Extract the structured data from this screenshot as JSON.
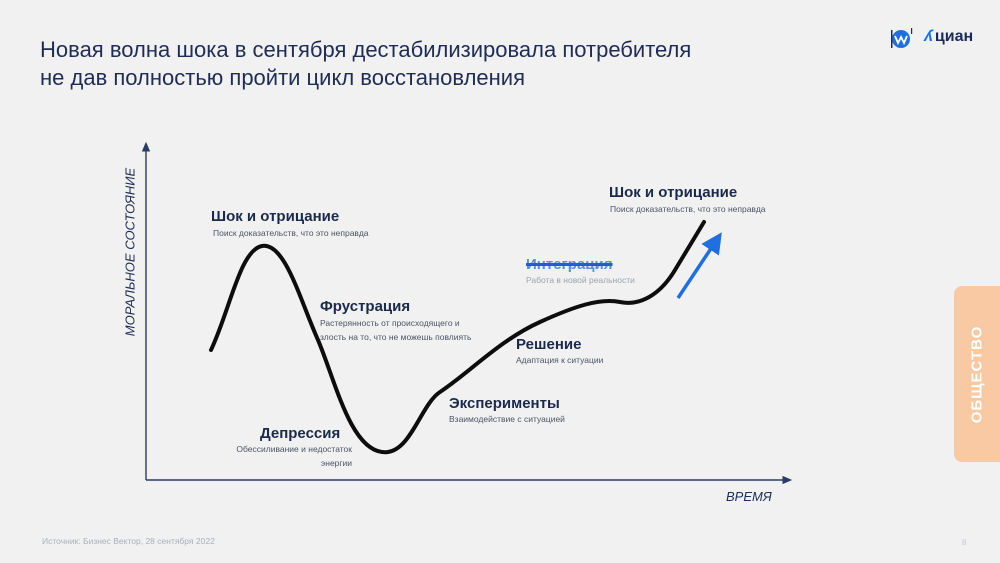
{
  "header": {
    "title_line1": "Новая волна шока в сентября дестабилизировала потребителя",
    "title_line2": "не дав полностью пройти цикл восстановления"
  },
  "logos": {
    "cian": "циан",
    "mark_icon": "eye-logo-icon"
  },
  "axes": {
    "y_label": "МОРАЛЬНОЕ СОСТОЯНИЕ",
    "x_label": "ВРЕМЯ"
  },
  "stages": [
    {
      "title": "Шок и отрицание",
      "subtitle": "Поиск доказательств, что это неправда"
    },
    {
      "title": "Фрустрация",
      "subtitle_line1": "Растерянность от происходящего и",
      "subtitle_line2": "злость на то, что не можешь повлиять"
    },
    {
      "title": "Депрессия",
      "subtitle_line1": "Обессиливание и недостаток",
      "subtitle_line2": "энергии"
    },
    {
      "title": "Эксперименты",
      "subtitle": "Взаимодействие с ситуацией"
    },
    {
      "title": "Решение",
      "subtitle": "Адаптация к ситуации"
    },
    {
      "title": "Интеграция",
      "subtitle": "Работа в новой реальности",
      "crossed_out": true
    },
    {
      "title": "Шок и отрицание",
      "subtitle": "Поиск доказательств, что это неправда"
    }
  ],
  "colors": {
    "curve": "#0d0d0d",
    "arrow": "#1f6fe0",
    "axis": "#2a3a6a",
    "side_tab": "#f8c9a2"
  },
  "side_tab": {
    "label": "ОБЩЕСТВО"
  },
  "footer": {
    "source": "Источник: Бизнес Вектор, 28 сентября 2022",
    "page": "8"
  }
}
